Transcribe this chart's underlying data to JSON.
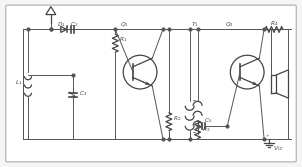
{
  "bg": "#f5f5f5",
  "border_color": "#bbbbbb",
  "lc": "#555555",
  "cc": "#444444",
  "lbl": "#444444",
  "fw": 3.02,
  "fh": 1.67,
  "dpi": 100,
  "lw": 0.7,
  "clw": 0.9,
  "fs": 4.2
}
